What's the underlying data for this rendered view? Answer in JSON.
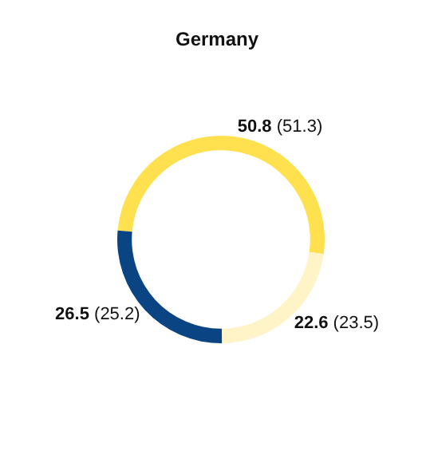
{
  "chart_data": {
    "type": "donut",
    "title": "Germany",
    "categories": [
      null,
      null,
      null
    ],
    "values": [
      50.8,
      22.6,
      26.5
    ],
    "value_labels": [
      "50.8 (51.3)",
      "22.6 (23.5)",
      "26.5 (25.2)"
    ],
    "colors": [
      "#ffe04f",
      "#fff3c8",
      "#0b4483"
    ]
  }
}
